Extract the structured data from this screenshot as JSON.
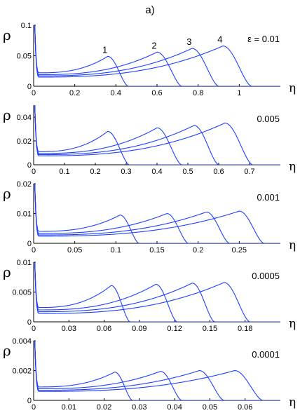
{
  "figure": {
    "title": "a)"
  },
  "colors": {
    "curve": "#1f3fff",
    "axis": "#000000"
  },
  "chart_data": [
    {
      "type": "line",
      "annotation": "ε = 0.01",
      "xlabel": "η",
      "ylabel": "ρ",
      "xlim": [
        0,
        1.2
      ],
      "ylim": [
        0,
        0.1
      ],
      "xticks": [
        "0",
        "0.2",
        "0.4",
        "0.6",
        "0.8",
        "1"
      ],
      "xtick_values": [
        0,
        0.2,
        0.4,
        0.6,
        0.8,
        1.0
      ],
      "yticks": [
        "0",
        "0.05",
        "0.1"
      ],
      "ytick_values": [
        0,
        0.05,
        0.1
      ],
      "curve_labels": [
        "1",
        "2",
        "3",
        "4"
      ],
      "series": [
        {
          "label": "1",
          "peak_x": 0.36,
          "peak_y": 0.049,
          "base_y": 0.022,
          "drop_end_x": 0.46
        },
        {
          "label": "2",
          "peak_x": 0.6,
          "peak_y": 0.056,
          "base_y": 0.019,
          "drop_end_x": 0.72
        },
        {
          "label": "3",
          "peak_x": 0.77,
          "peak_y": 0.062,
          "base_y": 0.017,
          "drop_end_x": 0.9
        },
        {
          "label": "4",
          "peak_x": 0.92,
          "peak_y": 0.066,
          "base_y": 0.015,
          "drop_end_x": 1.06
        }
      ]
    },
    {
      "type": "line",
      "annotation": "0.005",
      "xlabel": "η",
      "ylabel": "ρ",
      "xlim": [
        0,
        0.8
      ],
      "ylim": [
        0,
        0.05
      ],
      "xticks": [
        "0",
        "0.1",
        "0.2",
        "0.3",
        "0.4",
        "0.5",
        "0.6",
        "0.7"
      ],
      "xtick_values": [
        0,
        0.1,
        0.2,
        0.3,
        0.4,
        0.5,
        0.6,
        0.7
      ],
      "yticks": [
        "0",
        "0.02",
        "0.04"
      ],
      "ytick_values": [
        0,
        0.02,
        0.04
      ],
      "series": [
        {
          "label": "1",
          "peak_x": 0.24,
          "peak_y": 0.028,
          "base_y": 0.011,
          "drop_end_x": 0.31
        },
        {
          "label": "2",
          "peak_x": 0.4,
          "peak_y": 0.031,
          "base_y": 0.0095,
          "drop_end_x": 0.48
        },
        {
          "label": "3",
          "peak_x": 0.52,
          "peak_y": 0.033,
          "base_y": 0.0085,
          "drop_end_x": 0.6
        },
        {
          "label": "4",
          "peak_x": 0.62,
          "peak_y": 0.035,
          "base_y": 0.0075,
          "drop_end_x": 0.71
        }
      ]
    },
    {
      "type": "line",
      "annotation": "0.001",
      "xlabel": "η",
      "ylabel": "ρ",
      "xlim": [
        0,
        0.3
      ],
      "ylim": [
        0,
        0.02
      ],
      "xticks": [
        "0",
        "0.05",
        "0.1",
        "0.15",
        "0.2",
        "0.25"
      ],
      "xtick_values": [
        0,
        0.05,
        0.1,
        0.15,
        0.2,
        0.25
      ],
      "yticks": [
        "0",
        "0.01",
        "0.02"
      ],
      "ytick_values": [
        0,
        0.01,
        0.02
      ],
      "series": [
        {
          "label": "1",
          "peak_x": 0.105,
          "peak_y": 0.0095,
          "base_y": 0.004,
          "drop_end_x": 0.128
        },
        {
          "label": "2",
          "peak_x": 0.162,
          "peak_y": 0.01,
          "base_y": 0.0033,
          "drop_end_x": 0.188
        },
        {
          "label": "3",
          "peak_x": 0.21,
          "peak_y": 0.0105,
          "base_y": 0.0028,
          "drop_end_x": 0.238
        },
        {
          "label": "4",
          "peak_x": 0.25,
          "peak_y": 0.0108,
          "base_y": 0.0024,
          "drop_end_x": 0.28
        }
      ]
    },
    {
      "type": "line",
      "annotation": "0.0005",
      "xlabel": "η",
      "ylabel": "ρ",
      "xlim": [
        0,
        0.21
      ],
      "ylim": [
        0,
        0.01
      ],
      "xticks": [
        "0",
        "0.03",
        "0.06",
        "0.09",
        "0.12",
        "0.15",
        "0.18"
      ],
      "xtick_values": [
        0,
        0.03,
        0.06,
        0.09,
        0.12,
        0.15,
        0.18
      ],
      "yticks": [
        "0",
        "0.005",
        "0.01"
      ],
      "ytick_values": [
        0,
        0.005,
        0.01
      ],
      "series": [
        {
          "label": "1",
          "peak_x": 0.066,
          "peak_y": 0.0061,
          "base_y": 0.0024,
          "drop_end_x": 0.082
        },
        {
          "label": "2",
          "peak_x": 0.104,
          "peak_y": 0.0063,
          "base_y": 0.002,
          "drop_end_x": 0.122
        },
        {
          "label": "3",
          "peak_x": 0.135,
          "peak_y": 0.0065,
          "base_y": 0.0017,
          "drop_end_x": 0.154
        },
        {
          "label": "4",
          "peak_x": 0.162,
          "peak_y": 0.0066,
          "base_y": 0.0014,
          "drop_end_x": 0.184
        }
      ]
    },
    {
      "type": "line",
      "annotation": "0.0001",
      "xlabel": "η",
      "ylabel": "ρ",
      "xlim": [
        0,
        0.07
      ],
      "ylim": [
        0,
        0.004
      ],
      "xticks": [
        "0",
        "0.01",
        "0.02",
        "0.03",
        "0.04",
        "0.05",
        "0.06"
      ],
      "xtick_values": [
        0,
        0.01,
        0.02,
        0.03,
        0.04,
        0.05,
        0.06
      ],
      "yticks": [
        "0",
        "0.002",
        "0.004"
      ],
      "ytick_values": [
        0,
        0.002,
        0.004
      ],
      "series": [
        {
          "label": "1",
          "peak_x": 0.023,
          "peak_y": 0.0019,
          "base_y": 0.0009,
          "drop_end_x": 0.028
        },
        {
          "label": "2",
          "peak_x": 0.036,
          "peak_y": 0.00195,
          "base_y": 0.00078,
          "drop_end_x": 0.042
        },
        {
          "label": "3",
          "peak_x": 0.047,
          "peak_y": 0.002,
          "base_y": 0.00068,
          "drop_end_x": 0.054
        },
        {
          "label": "4",
          "peak_x": 0.057,
          "peak_y": 0.002,
          "base_y": 0.0006,
          "drop_end_x": 0.065
        }
      ]
    }
  ]
}
